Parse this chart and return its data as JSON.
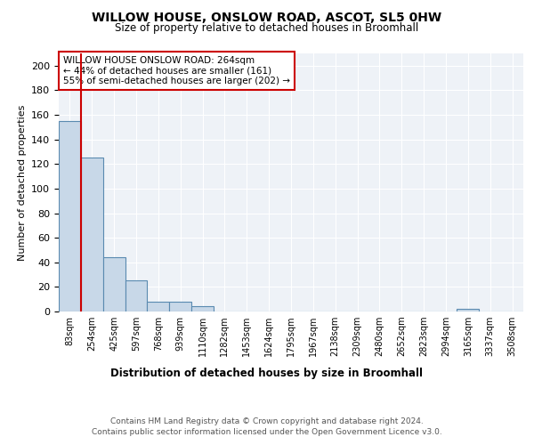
{
  "title1": "WILLOW HOUSE, ONSLOW ROAD, ASCOT, SL5 0HW",
  "title2": "Size of property relative to detached houses in Broomhall",
  "xlabel": "Distribution of detached houses by size in Broomhall",
  "ylabel": "Number of detached properties",
  "bar_color": "#c8d8e8",
  "bar_edge_color": "#5a8ab0",
  "annotation_box_color": "#ffffff",
  "annotation_box_edge": "#cc0000",
  "vline_color": "#cc0000",
  "bin_labels": [
    "83sqm",
    "254sqm",
    "425sqm",
    "597sqm",
    "768sqm",
    "939sqm",
    "1110sqm",
    "1282sqm",
    "1453sqm",
    "1624sqm",
    "1795sqm",
    "1967sqm",
    "2138sqm",
    "2309sqm",
    "2480sqm",
    "2652sqm",
    "2823sqm",
    "2994sqm",
    "3165sqm",
    "3337sqm",
    "3508sqm"
  ],
  "bar_heights": [
    155,
    125,
    44,
    25,
    8,
    8,
    4,
    0,
    0,
    0,
    0,
    0,
    0,
    0,
    0,
    0,
    0,
    0,
    2,
    0,
    0
  ],
  "ylim": [
    0,
    210
  ],
  "yticks": [
    0,
    20,
    40,
    60,
    80,
    100,
    120,
    140,
    160,
    180,
    200
  ],
  "vline_x_bar_index": 1,
  "annotation_text": "WILLOW HOUSE ONSLOW ROAD: 264sqm\n← 44% of detached houses are smaller (161)\n55% of semi-detached houses are larger (202) →",
  "footer1": "Contains HM Land Registry data © Crown copyright and database right 2024.",
  "footer2": "Contains public sector information licensed under the Open Government Licence v3.0.",
  "background_color": "#eef2f7",
  "grid_color": "#ffffff",
  "fig_width": 6.0,
  "fig_height": 5.0,
  "dpi": 100
}
